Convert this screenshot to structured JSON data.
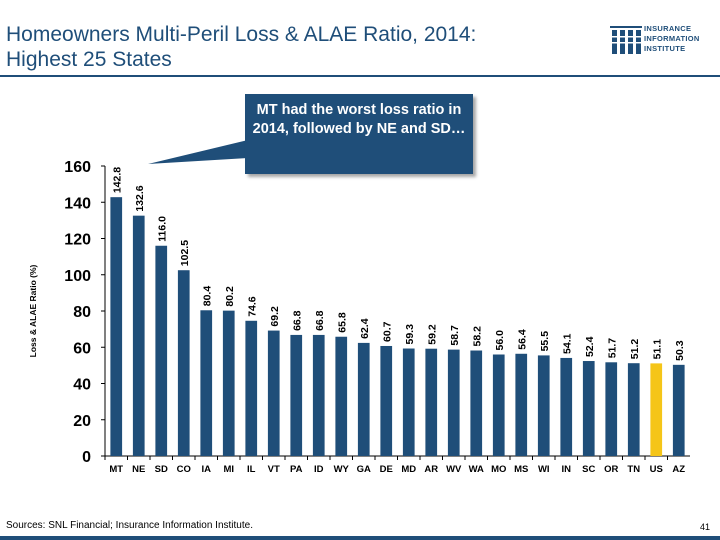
{
  "title_line1": "Homeowners Multi-Peril Loss & ALAE Ratio, 2014:",
  "title_line2": "Highest 25 States",
  "logo": {
    "line1": "INSURANCE",
    "line2": "INFORMATION",
    "line3": "INSTITUTE"
  },
  "callout_text": "MT had the worst loss ratio in 2014, followed by NE and SD…",
  "source": "Sources:  SNL Financial; Insurance Information Institute.",
  "page_number": "41",
  "colors": {
    "bar": "#1f4e79",
    "highlight": "#f5c518",
    "title": "#1f4e79"
  },
  "chart_data": {
    "type": "bar",
    "title": "Homeowners Multi-Peril Loss & ALAE Ratio, 2014: Highest 25 States",
    "xlabel": "",
    "ylabel": "Loss & ALAE Ratio  (%)",
    "ylim": [
      0,
      160
    ],
    "yticks": [
      0,
      20,
      40,
      60,
      80,
      100,
      120,
      140,
      160
    ],
    "categories": [
      "MT",
      "NE",
      "SD",
      "CO",
      "IA",
      "MI",
      "IL",
      "VT",
      "PA",
      "ID",
      "WY",
      "GA",
      "DE",
      "MD",
      "AR",
      "WV",
      "WA",
      "MO",
      "MS",
      "WI",
      "IN",
      "SC",
      "OR",
      "TN",
      "US",
      "AZ"
    ],
    "values": [
      142.8,
      132.6,
      116.0,
      102.5,
      80.4,
      80.2,
      74.6,
      69.2,
      66.8,
      66.8,
      65.8,
      62.4,
      60.7,
      59.3,
      59.2,
      58.7,
      58.2,
      56.0,
      56.4,
      55.5,
      54.1,
      52.4,
      51.7,
      51.2,
      51.1,
      50.3
    ],
    "labels": [
      "142.8",
      "132.6",
      "116.0",
      "102.5",
      "80.4",
      "80.2",
      "74.6",
      "69.2",
      "66.8",
      "66.8",
      "65.8",
      "62.4",
      "60.7",
      "59.3",
      "59.2",
      "58.7",
      "58.2",
      "56.0",
      "56.4",
      "55.5",
      "54.1",
      "52.4",
      "51.7",
      "51.2",
      "51.1",
      "50.3"
    ],
    "highlight_category": "US",
    "grid": false,
    "legend": "none"
  }
}
